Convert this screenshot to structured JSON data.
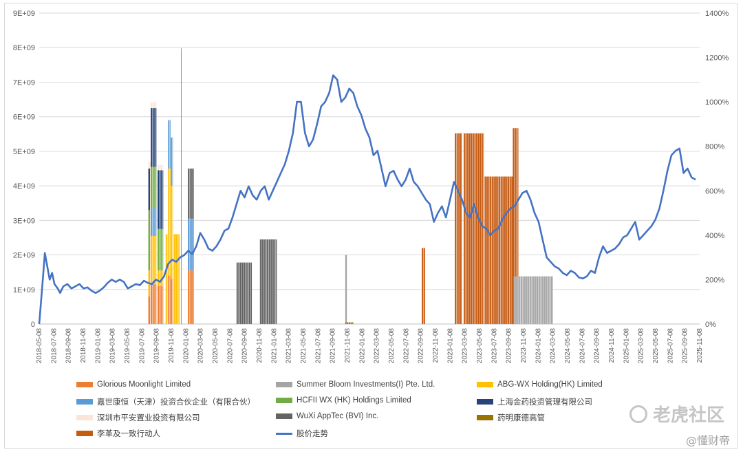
{
  "chart_data": {
    "type": "bar+line",
    "y_left": {
      "ticks": [
        "0",
        "1E+09",
        "2E+09",
        "3E+09",
        "4E+09",
        "5E+09",
        "6E+09",
        "7E+09",
        "8E+09",
        "9E+09"
      ],
      "min": 0,
      "max": 9000000000
    },
    "y_right": {
      "ticks": [
        "0%",
        "200%",
        "400%",
        "600%",
        "800%",
        "1000%",
        "1200%",
        "1400%"
      ],
      "min": 0,
      "max": 1400
    },
    "x_ticks": [
      "2018-05-08",
      "2018-07-08",
      "2018-09-08",
      "2018-11-08",
      "2019-01-08",
      "2019-03-08",
      "2019-05-08",
      "2019-07-08",
      "2019-09-08",
      "2019-11-08",
      "2020-01-08",
      "2020-03-08",
      "2020-05-08",
      "2020-07-08",
      "2020-09-08",
      "2020-11-08",
      "2021-01-08",
      "2021-03-08",
      "2021-05-08",
      "2021-07-08",
      "2021-09-08",
      "2021-11-08",
      "2022-01-08",
      "2022-03-08",
      "2022-05-08",
      "2022-07-08",
      "2022-09-08",
      "2022-11-08",
      "2023-01-08",
      "2023-03-08",
      "2023-05-08",
      "2023-07-08",
      "2023-09-08",
      "2023-11-08",
      "2024-01-08",
      "2024-03-08",
      "2024-05-08",
      "2024-07-08",
      "2024-09-08",
      "2024-11-08",
      "2025-01-08",
      "2025-03-08",
      "2025-05-08",
      "2025-07-08",
      "2025-09-08",
      "2025-11-08"
    ],
    "legend": [
      {
        "name": "Glorious Moonlight Limited",
        "color": "#ED7D31"
      },
      {
        "name": "Summer Bloom Investments(I) Pte. Ltd.",
        "color": "#A5A5A5"
      },
      {
        "name": "ABG-WX Holding(HK) Limited",
        "color": "#FFC000"
      },
      {
        "name": "嘉世康恒（天津）投资合伙企业（有限合伙）",
        "color": "#5B9BD5"
      },
      {
        "name": "HCFII WX (HK) Holdings Limited",
        "color": "#70AD47"
      },
      {
        "name": "上海金药投资管理有限公司",
        "color": "#264478"
      },
      {
        "name": "深圳市平安置业投资有限公司",
        "color": "#FBE5D6"
      },
      {
        "name": "WuXi AppTec (BVI) Inc.",
        "color": "#636363"
      },
      {
        "name": "药明康德高管",
        "color": "#997300"
      },
      {
        "name": "李革及一致行动人",
        "color": "#C55A11"
      },
      {
        "name": "股价走势",
        "color": "#4472C4"
      }
    ],
    "bars": [
      {
        "series": "深圳市平安置业投资有限公司",
        "x0": 13.55,
        "x1": 13.95,
        "y0": 0,
        "y1": 4700000000.0
      },
      {
        "series": "上海金药投资管理有限公司",
        "x0": 13.55,
        "x1": 13.75,
        "y0": 3300000000.0,
        "y1": 4500000000.0
      },
      {
        "series": "HCFII WX (HK) Holdings Limited",
        "x0": 13.55,
        "x1": 13.75,
        "y0": 1550000000.0,
        "y1": 3300000000.0
      },
      {
        "series": "ABG-WX Holding(HK) Limited",
        "x0": 13.55,
        "x1": 13.75,
        "y0": 800000000.0,
        "y1": 1550000000.0
      },
      {
        "series": "Glorious Moonlight Limited",
        "x0": 13.55,
        "x1": 13.75,
        "y0": 0,
        "y1": 800000000.0
      },
      {
        "series": "深圳市平安置业投资有限公司",
        "x0": 13.85,
        "x1": 14.55,
        "y0": 6250000000.0,
        "y1": 6420000000.0
      },
      {
        "series": "上海金药投资管理有限公司",
        "x0": 13.85,
        "x1": 14.55,
        "y0": 4550000000.0,
        "y1": 6250000000.0
      },
      {
        "series": "HCFII WX (HK) Holdings Limited",
        "x0": 13.85,
        "x1": 14.55,
        "y0": 3350000000.0,
        "y1": 4550000000.0
      },
      {
        "series": "嘉世康恒（天津）投资合伙企业（有限合伙）",
        "x0": 13.85,
        "x1": 14.55,
        "y0": 2550000000.0,
        "y1": 3350000000.0
      },
      {
        "series": "ABG-WX Holding(HK) Limited",
        "x0": 13.85,
        "x1": 14.55,
        "y0": 1150000000.0,
        "y1": 2550000000.0
      },
      {
        "series": "Glorious Moonlight Limited",
        "x0": 13.85,
        "x1": 14.55,
        "y0": 0,
        "y1": 1150000000.0
      },
      {
        "series": "深圳市平安置业投资有限公司",
        "x0": 14.7,
        "x1": 15.4,
        "y0": 4450000000.0,
        "y1": 4600000000.0
      },
      {
        "series": "上海金药投资管理有限公司",
        "x0": 14.7,
        "x1": 15.4,
        "y0": 2750000000.0,
        "y1": 4450000000.0
      },
      {
        "series": "HCFII WX (HK) Holdings Limited",
        "x0": 14.7,
        "x1": 15.4,
        "y0": 1550000000.0,
        "y1": 2750000000.0
      },
      {
        "series": "ABG-WX Holding(HK) Limited",
        "x0": 14.7,
        "x1": 15.4,
        "y0": 1100000000.0,
        "y1": 1550000000.0
      },
      {
        "series": "Glorious Moonlight Limited",
        "x0": 14.7,
        "x1": 15.4,
        "y0": 0,
        "y1": 1100000000.0
      },
      {
        "series": "ABG-WX Holding(HK) Limited",
        "x0": 15.7,
        "x1": 15.95,
        "y0": 0,
        "y1": 2600000000.0
      },
      {
        "series": "嘉世康恒（天津）投资合伙企业（有限合伙）",
        "x0": 16.0,
        "x1": 16.3,
        "y0": 4500000000.0,
        "y1": 5900000000.0
      },
      {
        "series": "ABG-WX Holding(HK) Limited",
        "x0": 16.0,
        "x1": 16.3,
        "y0": 1400000000.0,
        "y1": 4500000000.0
      },
      {
        "series": "Glorious Moonlight Limited",
        "x0": 16.0,
        "x1": 16.3,
        "y0": 0,
        "y1": 1400000000.0
      },
      {
        "series": "嘉世康恒（天津）投资合伙企业（有限合伙）",
        "x0": 16.35,
        "x1": 16.6,
        "y0": 4000000000.0,
        "y1": 5400000000.0
      },
      {
        "series": "ABG-WX Holding(HK) Limited",
        "x0": 16.35,
        "x1": 16.6,
        "y0": 1300000000.0,
        "y1": 4000000000.0
      },
      {
        "series": "Glorious Moonlight Limited",
        "x0": 16.35,
        "x1": 16.6,
        "y0": 0,
        "y1": 1300000000.0
      },
      {
        "series": "ABG-WX Holding(HK) Limited",
        "x0": 16.7,
        "x1": 17.45,
        "y0": 0,
        "y1": 2600000000.0
      },
      {
        "series": "WuXi AppTec (BVI) Inc.",
        "x0": 18.45,
        "x1": 19.2,
        "y0": 3050000000.0,
        "y1": 4500000000.0
      },
      {
        "series": "嘉世康恒（天津）投资合伙企业（有限合伙）",
        "x0": 18.45,
        "x1": 19.2,
        "y0": 1550000000.0,
        "y1": 3050000000.0
      },
      {
        "series": "Glorious Moonlight Limited",
        "x0": 18.45,
        "x1": 19.2,
        "y0": 0,
        "y1": 1550000000.0
      },
      {
        "series": "WuXi AppTec (BVI) Inc.",
        "x0": 24.5,
        "x1": 26.4,
        "y0": 0,
        "y1": 1780000000.0
      },
      {
        "series": "WuXi AppTec (BVI) Inc.",
        "x0": 27.4,
        "x1": 29.5,
        "y0": 0,
        "y1": 2450000000.0
      },
      {
        "series": "Summer Bloom Investments(I) Pte. Ltd.",
        "x0": 38.0,
        "x1": 38.2,
        "y0": 0,
        "y1": 2000000000.0
      },
      {
        "series": "药明康德高管",
        "x0": 38.0,
        "x1": 39.0,
        "y0": 0,
        "y1": 50000000.0
      },
      {
        "series": "李革及一致行动人",
        "x0": 47.5,
        "x1": 47.9,
        "y0": 0,
        "y1": 2200000000.0
      },
      {
        "series": "李革及一致行动人",
        "x0": 51.6,
        "x1": 52.5,
        "y0": 0,
        "y1": 5520000000.0
      },
      {
        "series": "李革及一致行动人",
        "x0": 52.7,
        "x1": 55.2,
        "y0": 0,
        "y1": 5520000000.0
      },
      {
        "series": "李革及一致行动人",
        "x0": 55.3,
        "x1": 58.8,
        "y0": 0,
        "y1": 4270000000.0
      },
      {
        "series": "李革及一致行动人",
        "x0": 58.8,
        "x1": 59.5,
        "y0": 0,
        "y1": 5670000000.0
      },
      {
        "series": "Summer Bloom Investments(I) Pte. Ltd.",
        "x0": 58.9,
        "x1": 63.8,
        "y0": 0,
        "y1": 1380000000.0
      },
      {
        "series": "ABG-WX Holding(HK) Limited",
        "x0": 17.6,
        "x1": 17.7,
        "y0": 0,
        "y1": 7980000000.0,
        "thin": true,
        "color": "#70AD47"
      }
    ],
    "price_line": {
      "series": "股价走势",
      "unit": "%",
      "points": [
        [
          0,
          0
        ],
        [
          0.4,
          180
        ],
        [
          0.7,
          320
        ],
        [
          1.0,
          260
        ],
        [
          1.3,
          200
        ],
        [
          1.6,
          230
        ],
        [
          1.9,
          180
        ],
        [
          2.3,
          160
        ],
        [
          2.6,
          140
        ],
        [
          3.0,
          170
        ],
        [
          3.5,
          180
        ],
        [
          4.0,
          160
        ],
        [
          4.5,
          170
        ],
        [
          5.0,
          180
        ],
        [
          5.5,
          160
        ],
        [
          6.0,
          165
        ],
        [
          6.5,
          150
        ],
        [
          7.0,
          140
        ],
        [
          7.5,
          150
        ],
        [
          8.0,
          165
        ],
        [
          8.5,
          185
        ],
        [
          9.0,
          200
        ],
        [
          9.5,
          190
        ],
        [
          10.0,
          200
        ],
        [
          10.5,
          190
        ],
        [
          11.0,
          160
        ],
        [
          11.5,
          170
        ],
        [
          12.0,
          180
        ],
        [
          12.5,
          175
        ],
        [
          13.0,
          195
        ],
        [
          13.5,
          185
        ],
        [
          14.0,
          180
        ],
        [
          14.5,
          200
        ],
        [
          15.0,
          190
        ],
        [
          15.5,
          215
        ],
        [
          16.0,
          270
        ],
        [
          16.5,
          290
        ],
        [
          17.0,
          280
        ],
        [
          17.5,
          300
        ],
        [
          18.0,
          310
        ],
        [
          18.5,
          330
        ],
        [
          19.0,
          315
        ],
        [
          19.5,
          350
        ],
        [
          20.0,
          410
        ],
        [
          20.5,
          380
        ],
        [
          21.0,
          340
        ],
        [
          21.5,
          330
        ],
        [
          22.0,
          350
        ],
        [
          22.5,
          380
        ],
        [
          23.0,
          420
        ],
        [
          23.5,
          430
        ],
        [
          24.0,
          480
        ],
        [
          24.5,
          540
        ],
        [
          25.0,
          600
        ],
        [
          25.5,
          570
        ],
        [
          26.0,
          620
        ],
        [
          26.5,
          580
        ],
        [
          27.0,
          560
        ],
        [
          27.5,
          600
        ],
        [
          28.0,
          620
        ],
        [
          28.5,
          560
        ],
        [
          29.0,
          600
        ],
        [
          29.5,
          640
        ],
        [
          30.0,
          680
        ],
        [
          30.5,
          720
        ],
        [
          31.0,
          780
        ],
        [
          31.5,
          860
        ],
        [
          32.0,
          1000
        ],
        [
          32.5,
          1000
        ],
        [
          33.0,
          860
        ],
        [
          33.5,
          800
        ],
        [
          34.0,
          830
        ],
        [
          34.5,
          900
        ],
        [
          35.0,
          980
        ],
        [
          35.5,
          1000
        ],
        [
          36.0,
          1040
        ],
        [
          36.5,
          1120
        ],
        [
          37.0,
          1100
        ],
        [
          37.5,
          1000
        ],
        [
          38.0,
          1020
        ],
        [
          38.5,
          1060
        ],
        [
          39.0,
          1040
        ],
        [
          39.5,
          980
        ],
        [
          40.0,
          940
        ],
        [
          40.5,
          880
        ],
        [
          41.0,
          840
        ],
        [
          41.5,
          760
        ],
        [
          42.0,
          780
        ],
        [
          42.5,
          700
        ],
        [
          43.0,
          620
        ],
        [
          43.5,
          680
        ],
        [
          44.0,
          690
        ],
        [
          44.5,
          650
        ],
        [
          45.0,
          620
        ],
        [
          45.5,
          650
        ],
        [
          46.0,
          700
        ],
        [
          46.5,
          640
        ],
        [
          47.0,
          620
        ],
        [
          47.5,
          590
        ],
        [
          48.0,
          560
        ],
        [
          48.5,
          540
        ],
        [
          49.0,
          460
        ],
        [
          49.5,
          500
        ],
        [
          50.0,
          530
        ],
        [
          50.5,
          480
        ],
        [
          51.0,
          560
        ],
        [
          51.5,
          640
        ],
        [
          52.0,
          600
        ],
        [
          52.5,
          560
        ],
        [
          53.0,
          500
        ],
        [
          53.5,
          480
        ],
        [
          54.0,
          540
        ],
        [
          54.5,
          480
        ],
        [
          55.0,
          440
        ],
        [
          55.5,
          430
        ],
        [
          56.0,
          400
        ],
        [
          56.5,
          420
        ],
        [
          57.0,
          430
        ],
        [
          57.5,
          470
        ],
        [
          58.0,
          500
        ],
        [
          58.5,
          520
        ],
        [
          59.0,
          530
        ],
        [
          59.5,
          560
        ],
        [
          60.0,
          590
        ],
        [
          60.5,
          600
        ],
        [
          61.0,
          560
        ],
        [
          61.5,
          500
        ],
        [
          62.0,
          460
        ],
        [
          62.5,
          380
        ],
        [
          63.0,
          300
        ],
        [
          63.5,
          280
        ],
        [
          64.0,
          260
        ],
        [
          64.5,
          250
        ],
        [
          65.0,
          230
        ],
        [
          65.5,
          220
        ],
        [
          66.0,
          240
        ],
        [
          66.5,
          230
        ],
        [
          67.0,
          210
        ],
        [
          67.5,
          205
        ],
        [
          68.0,
          215
        ],
        [
          68.5,
          240
        ],
        [
          69.0,
          230
        ],
        [
          69.5,
          300
        ],
        [
          70.0,
          350
        ],
        [
          70.5,
          320
        ],
        [
          71.0,
          330
        ],
        [
          71.5,
          340
        ],
        [
          72.0,
          360
        ],
        [
          72.5,
          390
        ],
        [
          73.0,
          400
        ],
        [
          73.5,
          430
        ],
        [
          74.0,
          460
        ],
        [
          74.5,
          380
        ],
        [
          75.0,
          400
        ],
        [
          75.5,
          420
        ],
        [
          76.0,
          440
        ],
        [
          76.5,
          470
        ],
        [
          77.0,
          520
        ],
        [
          77.5,
          600
        ],
        [
          78.0,
          690
        ],
        [
          78.5,
          760
        ],
        [
          79.0,
          780
        ],
        [
          79.5,
          790
        ],
        [
          80.0,
          680
        ],
        [
          80.5,
          700
        ],
        [
          81.0,
          660
        ],
        [
          81.5,
          650
        ]
      ]
    }
  }
}
